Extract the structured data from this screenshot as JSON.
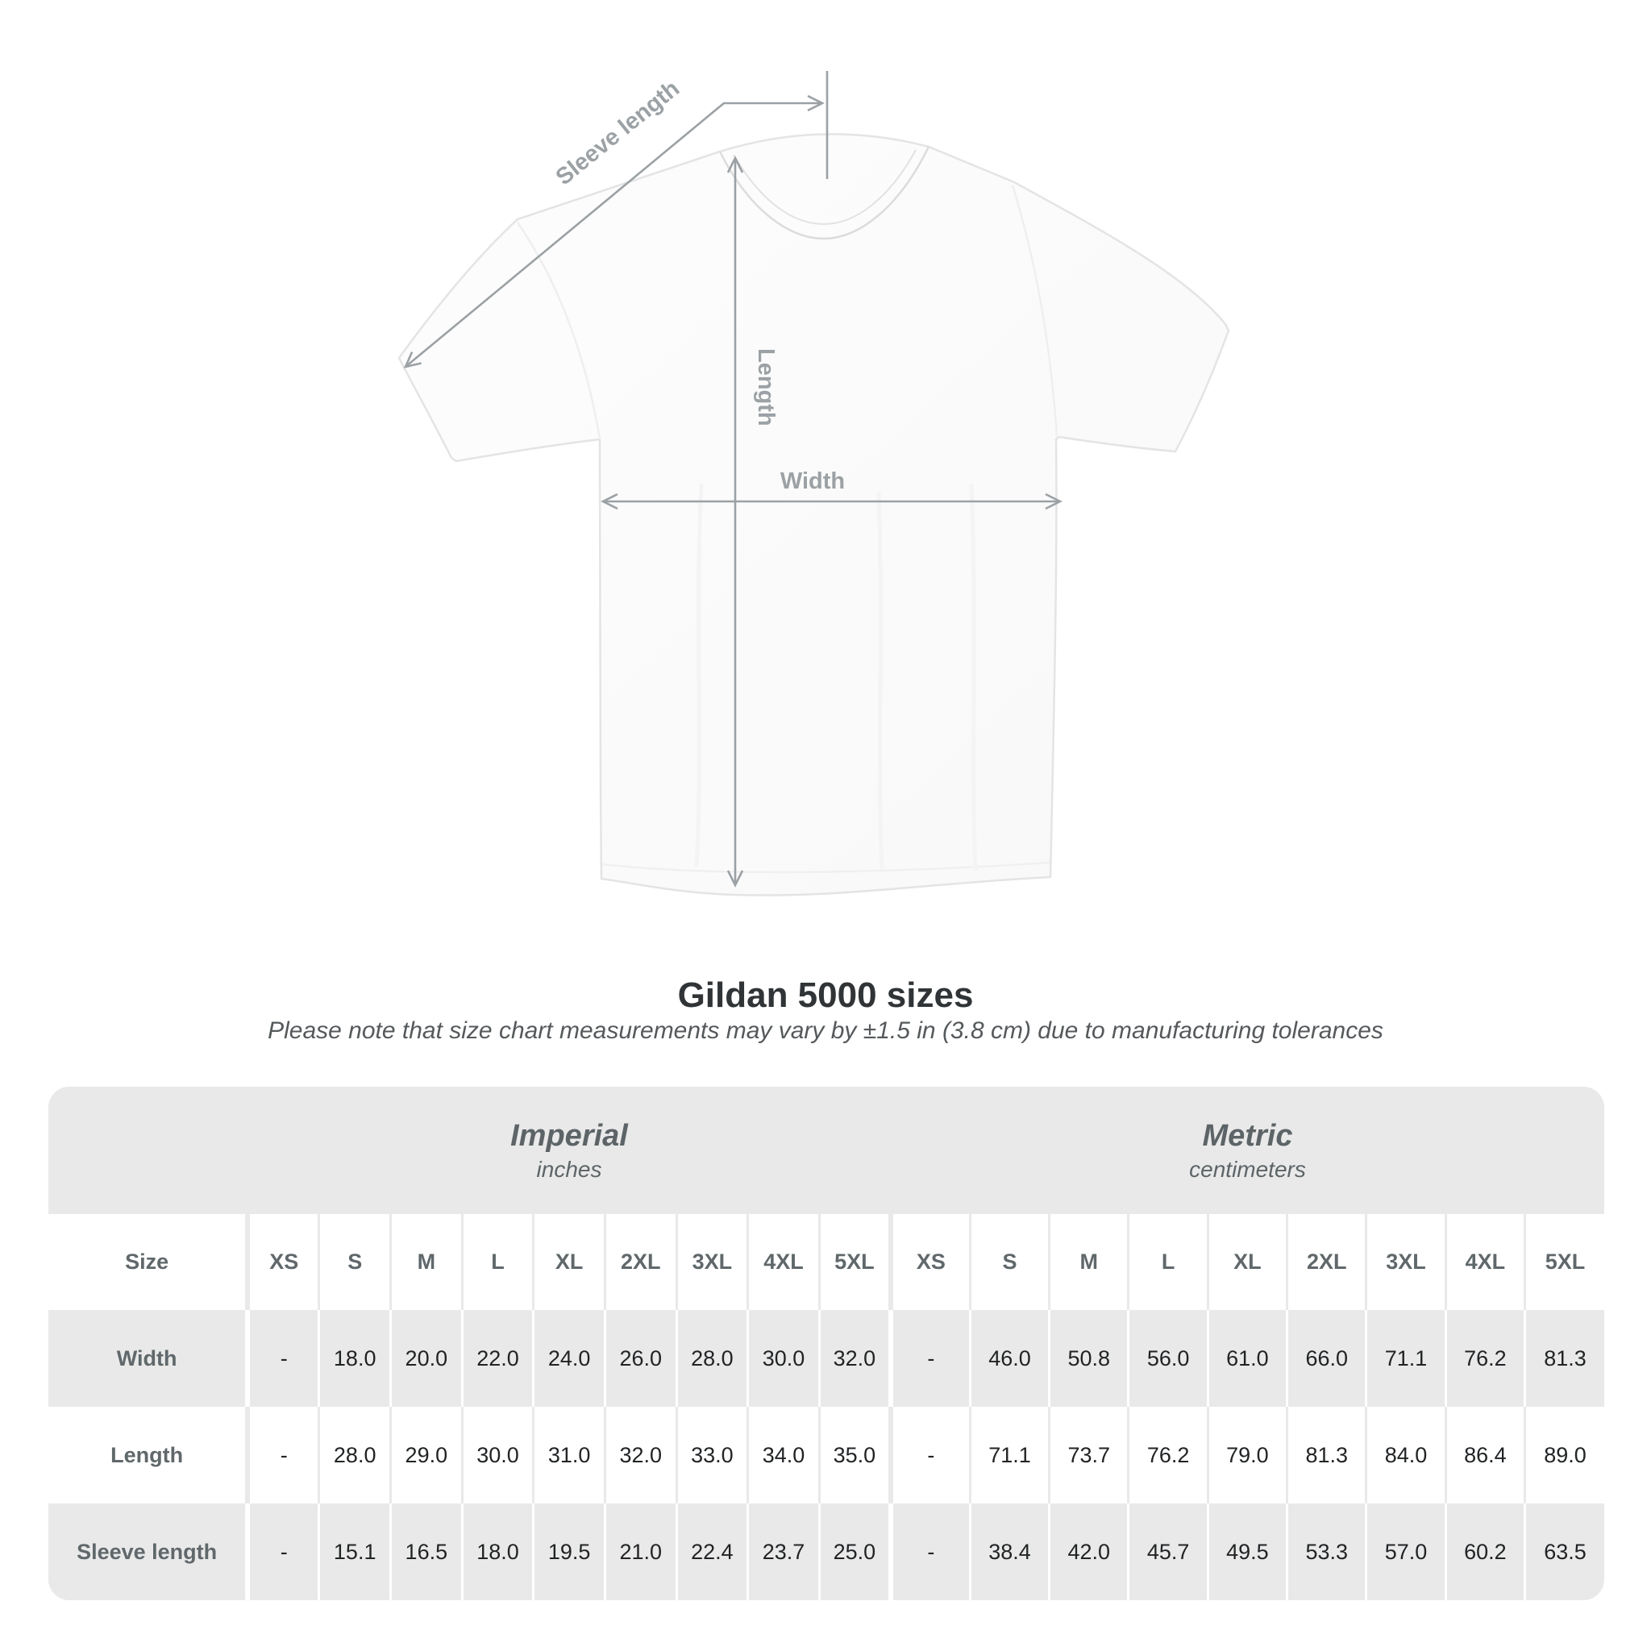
{
  "diagram": {
    "labels": {
      "sleeve_length": "Sleeve length",
      "length": "Length",
      "width": "Width"
    }
  },
  "header": {
    "title": "Gildan 5000 sizes",
    "note": "Please note that size chart measurements may vary by ±1.5 in (3.8 cm) due to manufacturing tolerances"
  },
  "table": {
    "size_column_header": "Size",
    "unit_groups": [
      {
        "name": "Imperial",
        "unit": "inches"
      },
      {
        "name": "Metric",
        "unit": "centimeters"
      }
    ],
    "sizes": [
      "XS",
      "S",
      "M",
      "L",
      "XL",
      "2XL",
      "3XL",
      "4XL",
      "5XL"
    ],
    "rows": [
      {
        "label": "Width",
        "imperial": [
          "-",
          "18.0",
          "20.0",
          "22.0",
          "24.0",
          "26.0",
          "28.0",
          "30.0",
          "32.0"
        ],
        "metric": [
          "-",
          "46.0",
          "50.8",
          "56.0",
          "61.0",
          "66.0",
          "71.1",
          "76.2",
          "81.3"
        ]
      },
      {
        "label": "Length",
        "imperial": [
          "-",
          "28.0",
          "29.0",
          "30.0",
          "31.0",
          "32.0",
          "33.0",
          "34.0",
          "35.0"
        ],
        "metric": [
          "-",
          "71.1",
          "73.7",
          "76.2",
          "79.0",
          "81.3",
          "84.0",
          "86.4",
          "89.0"
        ]
      },
      {
        "label": "Sleeve length",
        "imperial": [
          "-",
          "15.1",
          "16.5",
          "18.0",
          "19.5",
          "21.0",
          "22.4",
          "23.7",
          "25.0"
        ],
        "metric": [
          "-",
          "38.4",
          "42.0",
          "45.7",
          "49.5",
          "53.3",
          "57.0",
          "60.2",
          "63.5"
        ]
      }
    ]
  },
  "colors": {
    "annotation": "#9ba1a4",
    "label_text": "#60686b",
    "value_text": "#212325",
    "card_background": "#e9e9e9",
    "row_white": "#ffffff",
    "title_text": "#303436"
  }
}
